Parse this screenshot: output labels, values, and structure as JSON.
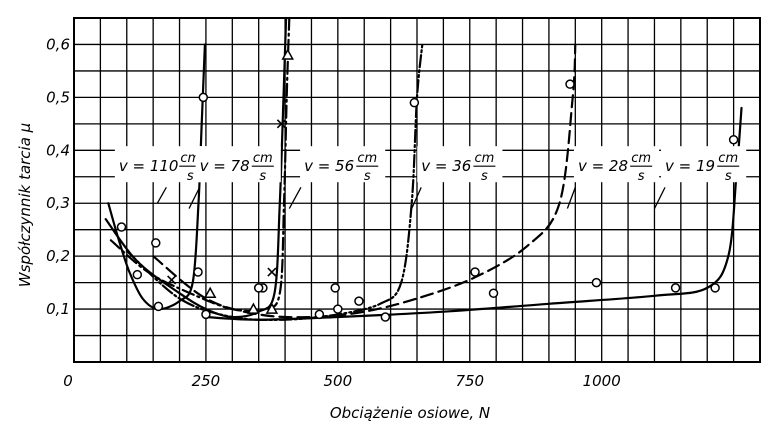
{
  "chart_data": {
    "type": "line",
    "xlabel": "Obciążenie osiowe, N",
    "ylabel": "Współczynnik tarcia μ",
    "xlim": [
      0,
      1300
    ],
    "ylim": [
      0,
      0.65
    ],
    "x_ticks": [
      {
        "value": 0,
        "label": "0"
      },
      {
        "value": 250,
        "label": "250"
      },
      {
        "value": 500,
        "label": "500"
      },
      {
        "value": 750,
        "label": "750"
      },
      {
        "value": 1000,
        "label": "1000"
      }
    ],
    "y_ticks": [
      {
        "value": 0.1,
        "label": "0,1"
      },
      {
        "value": 0.2,
        "label": "0,2"
      },
      {
        "value": 0.3,
        "label": "0,3"
      },
      {
        "value": 0.4,
        "label": "0,4"
      },
      {
        "value": 0.5,
        "label": "0,5"
      },
      {
        "value": 0.6,
        "label": "0,6"
      }
    ],
    "grid": true,
    "series": [
      {
        "name": "v = 110 cm/s",
        "label_parts": {
          "prefix": "v = 110",
          "num": "cm",
          "den": "s"
        },
        "label_pos": [
          85,
          0.37
        ],
        "leader": [
          [
            175,
            0.33
          ],
          [
            158,
            0.3
          ]
        ],
        "line_style": "solid",
        "marker": "circle",
        "points": [
          [
            65,
            0.3
          ],
          [
            85,
            0.23
          ],
          [
            105,
            0.17
          ],
          [
            130,
            0.12
          ],
          [
            160,
            0.1
          ],
          [
            200,
            0.115
          ],
          [
            225,
            0.15
          ],
          [
            236,
            0.3
          ],
          [
            242,
            0.45
          ],
          [
            248,
            0.6
          ]
        ],
        "markers": [
          [
            90,
            0.255
          ],
          [
            120,
            0.165
          ],
          [
            155,
            0.225
          ],
          [
            235,
            0.17
          ],
          [
            245,
            0.5
          ]
        ]
      },
      {
        "name": "v = 78 cm/s",
        "label_parts": {
          "prefix": "v = 78",
          "num": "cm",
          "den": "s"
        },
        "label_pos": [
          238,
          0.37
        ],
        "leader": [
          [
            238,
            0.33
          ],
          [
            218,
            0.29
          ]
        ],
        "line_style": "solid",
        "marker": "circle",
        "points": [
          [
            60,
            0.27
          ],
          [
            120,
            0.19
          ],
          [
            200,
            0.13
          ],
          [
            250,
            0.1
          ],
          [
            300,
            0.085
          ],
          [
            350,
            0.095
          ],
          [
            380,
            0.13
          ],
          [
            390,
            0.3
          ],
          [
            397,
            0.5
          ],
          [
            402,
            0.65
          ]
        ],
        "markers": [
          [
            358,
            0.14
          ],
          [
            160,
            0.105
          ]
        ]
      },
      {
        "name": "v = 56 cm/s",
        "label_parts": {
          "prefix": "v = 56",
          "num": "cm",
          "den": "s"
        },
        "label_pos": [
          436,
          0.37
        ],
        "leader": [
          [
            430,
            0.33
          ],
          [
            408,
            0.29
          ]
        ],
        "line_style": "dash-dot",
        "marker": "triangle",
        "points": [
          [
            70,
            0.23
          ],
          [
            140,
            0.17
          ],
          [
            220,
            0.13
          ],
          [
            300,
            0.1
          ],
          [
            360,
            0.1
          ],
          [
            390,
            0.13
          ],
          [
            398,
            0.3
          ],
          [
            403,
            0.5
          ],
          [
            408,
            0.65
          ]
        ],
        "markers": [
          [
            258,
            0.13
          ],
          [
            340,
            0.1
          ],
          [
            375,
            0.1
          ],
          [
            405,
            0.58
          ]
        ]
      },
      {
        "name": "v = 36 cm/s",
        "label_parts": {
          "prefix": "v = 36",
          "num": "cm",
          "den": "s"
        },
        "label_pos": [
          658,
          0.37
        ],
        "leader": [
          [
            658,
            0.33
          ],
          [
            640,
            0.29
          ]
        ],
        "line_style": "dash-dot-dot",
        "marker": "circle",
        "points": [
          [
            100,
            0.21
          ],
          [
            200,
            0.12
          ],
          [
            300,
            0.085
          ],
          [
            400,
            0.08
          ],
          [
            500,
            0.09
          ],
          [
            580,
            0.11
          ],
          [
            620,
            0.15
          ],
          [
            640,
            0.3
          ],
          [
            650,
            0.5
          ],
          [
            660,
            0.6
          ]
        ],
        "markers": [
          [
            350,
            0.14
          ],
          [
            495,
            0.14
          ],
          [
            540,
            0.115
          ],
          [
            645,
            0.49
          ]
        ]
      },
      {
        "name": "v = 28 cm/s",
        "label_parts": {
          "prefix": "v = 28",
          "num": "cm",
          "den": "s"
        },
        "label_pos": [
          955,
          0.37
        ],
        "leader": [
          [
            950,
            0.33
          ],
          [
            935,
            0.29
          ]
        ],
        "line_style": "dashed",
        "marker": "circle",
        "points": [
          [
            150,
            0.2
          ],
          [
            250,
            0.12
          ],
          [
            350,
            0.09
          ],
          [
            450,
            0.085
          ],
          [
            550,
            0.095
          ],
          [
            650,
            0.12
          ],
          [
            760,
            0.16
          ],
          [
            860,
            0.22
          ],
          [
            920,
            0.3
          ],
          [
            945,
            0.5
          ],
          [
            950,
            0.6
          ]
        ],
        "markers": [
          [
            465,
            0.09
          ],
          [
            760,
            0.17
          ],
          [
            795,
            0.13
          ],
          [
            940,
            0.525
          ]
        ]
      },
      {
        "name": "v = 19 cm/s",
        "label_parts": {
          "prefix": "v = 19",
          "num": "cm",
          "den": "s"
        },
        "label_pos": [
          1120,
          0.37
        ],
        "leader": [
          [
            1120,
            0.33
          ],
          [
            1100,
            0.29
          ]
        ],
        "line_style": "solid",
        "marker": "circle",
        "points": [
          [
            250,
            0.085
          ],
          [
            350,
            0.08
          ],
          [
            500,
            0.085
          ],
          [
            700,
            0.095
          ],
          [
            900,
            0.11
          ],
          [
            1100,
            0.125
          ],
          [
            1200,
            0.14
          ],
          [
            1240,
            0.2
          ],
          [
            1255,
            0.35
          ],
          [
            1265,
            0.48
          ]
        ],
        "markers": [
          [
            250,
            0.09
          ],
          [
            590,
            0.085
          ],
          [
            500,
            0.1
          ],
          [
            990,
            0.15
          ],
          [
            1140,
            0.14
          ],
          [
            1215,
            0.14
          ],
          [
            1250,
            0.42
          ]
        ]
      }
    ],
    "cross_markers": [
      [
        185,
        0.155
      ],
      [
        375,
        0.17
      ],
      [
        393,
        0.45
      ]
    ]
  }
}
